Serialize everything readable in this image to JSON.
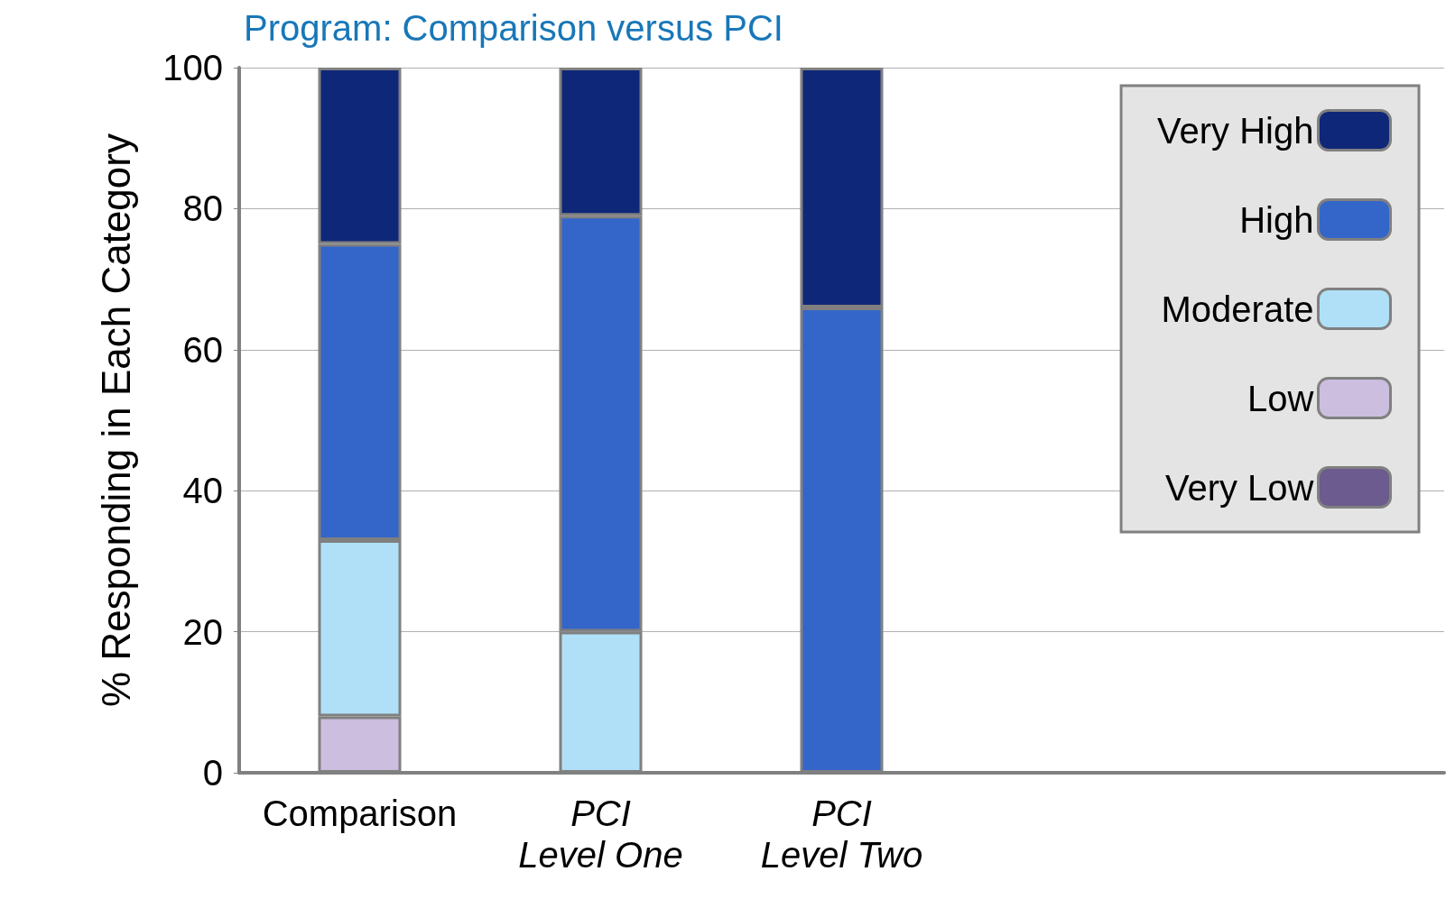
{
  "chart_data": {
    "type": "bar",
    "title": "Program: Comparison versus PCI",
    "ylabel": "% Responding in Each Category",
    "categories": [
      "Comparison",
      "PCI\nLevel One",
      "PCI\nLevel Two"
    ],
    "stacked": true,
    "series": [
      {
        "name": "Very Low",
        "color": "#6b5b8e",
        "values": [
          0,
          0,
          0
        ]
      },
      {
        "name": "Low",
        "color": "#cbbede",
        "values": [
          8,
          0,
          0
        ]
      },
      {
        "name": "Moderate",
        "color": "#b0e0f8",
        "values": [
          25,
          20,
          0
        ]
      },
      {
        "name": "High",
        "color": "#3366c8",
        "values": [
          42,
          59,
          66
        ]
      },
      {
        "name": "Very High",
        "color": "#0f2778",
        "values": [
          25,
          21,
          34
        ]
      }
    ],
    "ylim": [
      0,
      100
    ],
    "yticks": [
      0,
      20,
      40,
      60,
      80,
      100
    ],
    "grid": "y",
    "legend": "top right"
  }
}
